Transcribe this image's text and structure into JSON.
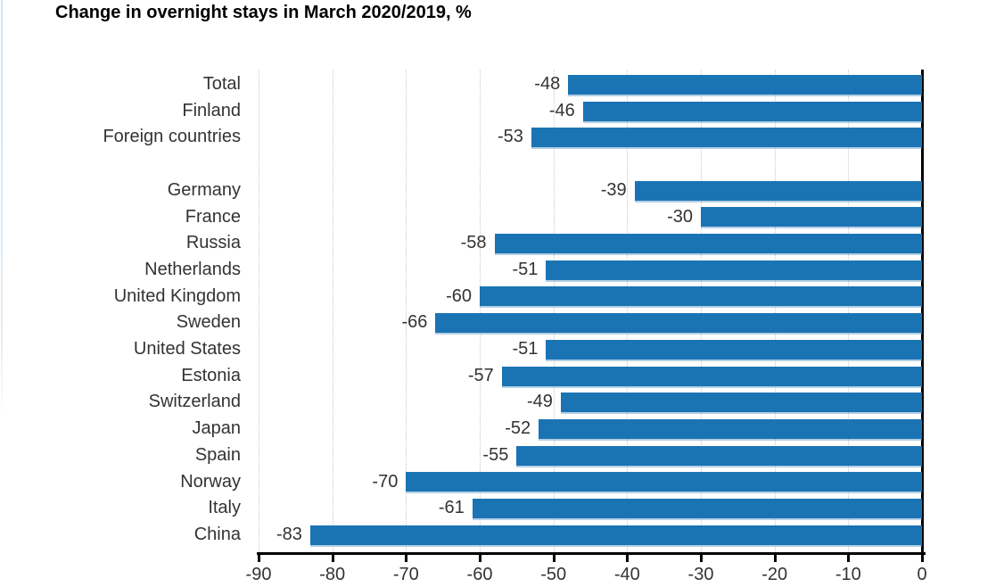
{
  "header": {
    "title": "Change in overnight stays in March 2020/2019, %"
  },
  "chart_data": {
    "type": "bar",
    "orientation": "horizontal",
    "title": "Change in overnight stays in March 2020/2019, %",
    "categories": [
      "Total",
      "Finland",
      "Foreign countries",
      "",
      "Germany",
      "France",
      "Russia",
      "Netherlands",
      "United Kingdom",
      "Sweden",
      "United States",
      "Estonia",
      "Switzerland",
      "Japan",
      "Spain",
      "Norway",
      "Italy",
      "China"
    ],
    "values": [
      -48,
      -46,
      -53,
      null,
      -39,
      -30,
      -58,
      -51,
      -60,
      -66,
      -51,
      -57,
      -49,
      -52,
      -55,
      -70,
      -61,
      -83
    ],
    "data_labels": [
      -48,
      -46,
      -53,
      null,
      -39,
      -30,
      -58,
      -51,
      -60,
      -66,
      -51,
      -57,
      -49,
      -52,
      -55,
      -70,
      -61,
      -83
    ],
    "xlabel": "",
    "ylabel": "",
    "xlim": [
      -90,
      0
    ],
    "x_ticks": [
      -90,
      -80,
      -70,
      -60,
      -50,
      -40,
      -30,
      -20,
      -10,
      0
    ],
    "grid": "vertical-dotted",
    "legend": "none",
    "colors": {
      "bar": "#1a74b4",
      "axis": "#000000",
      "gridline": "#c9c9c9",
      "label": "#333333",
      "title": "#000000"
    }
  }
}
